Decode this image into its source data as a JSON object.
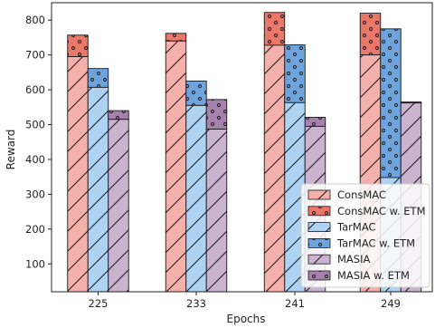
{
  "chart_data": {
    "type": "bar",
    "xlabel": "Epochs",
    "ylabel": "Reward",
    "categories": [
      "225",
      "233",
      "241",
      "249"
    ],
    "ylim": [
      20,
      850
    ],
    "yticks": [
      100,
      200,
      300,
      400,
      500,
      600,
      700,
      800
    ],
    "groups": [
      {
        "name": "ConsMAC",
        "base": {
          "name": "ConsMAC",
          "values": [
            695,
            740,
            728,
            700
          ]
        },
        "etm": {
          "name": "ConsMAC w. ETM",
          "values": [
            757,
            762,
            822,
            820
          ]
        },
        "base_color": "#f4b1ac",
        "etm_color": "#e9776a"
      },
      {
        "name": "TarMAC",
        "base": {
          "name": "TarMAC",
          "values": [
            607,
            555,
            563,
            348
          ]
        },
        "etm": {
          "name": "TarMAC w. ETM",
          "values": [
            661,
            625,
            729,
            775
          ]
        },
        "base_color": "#aed2f2",
        "etm_color": "#6fa3dc"
      },
      {
        "name": "MASIA",
        "base": {
          "name": "MASIA",
          "values": [
            515,
            487,
            495,
            562
          ]
        },
        "etm": {
          "name": "MASIA w. ETM",
          "values": [
            540,
            572,
            521,
            565
          ]
        },
        "base_color": "#c9b3cf",
        "etm_color": "#a781ad"
      }
    ],
    "legend": {
      "position": "lower-right",
      "entries": [
        "ConsMAC",
        "ConsMAC w. ETM",
        "TarMAC",
        "TarMAC w. ETM",
        "MASIA",
        "MASIA w. ETM"
      ]
    },
    "grid": false
  }
}
